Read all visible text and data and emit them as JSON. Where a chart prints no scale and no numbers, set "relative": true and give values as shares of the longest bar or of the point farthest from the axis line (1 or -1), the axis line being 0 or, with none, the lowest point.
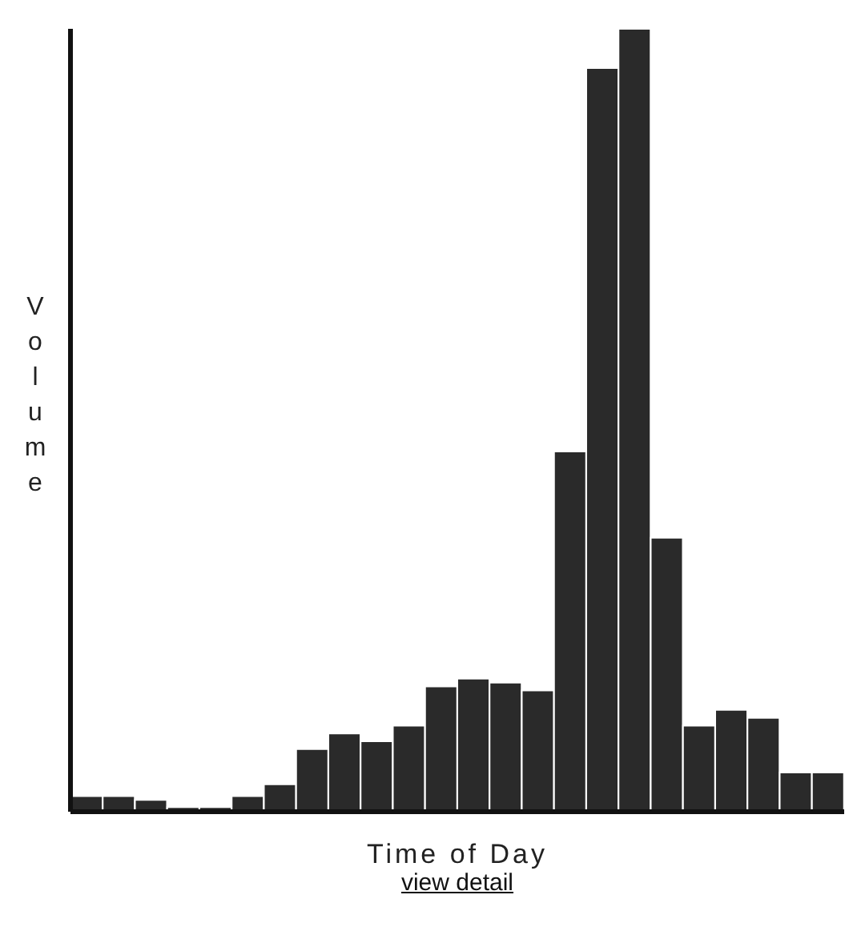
{
  "chart_data": {
    "type": "bar",
    "relative": true,
    "xlabel": "Time of Day",
    "ylabel": "Volume",
    "annotations": [
      "view detail"
    ],
    "categories": [
      null,
      null,
      null,
      null,
      null,
      null,
      null,
      null,
      null,
      null,
      null,
      null,
      null,
      null,
      null,
      null,
      null,
      null,
      null,
      null,
      null,
      null,
      null,
      null
    ],
    "values": [
      0.02,
      0.02,
      0.015,
      0.006,
      0.006,
      0.02,
      0.035,
      0.08,
      0.1,
      0.09,
      0.11,
      0.16,
      0.17,
      0.165,
      0.155,
      0.46,
      0.95,
      1,
      0.35,
      0.11,
      0.13,
      0.12,
      0.05,
      0.05
    ],
    "color": "#2a2a2a",
    "grid": false,
    "legend": false
  }
}
